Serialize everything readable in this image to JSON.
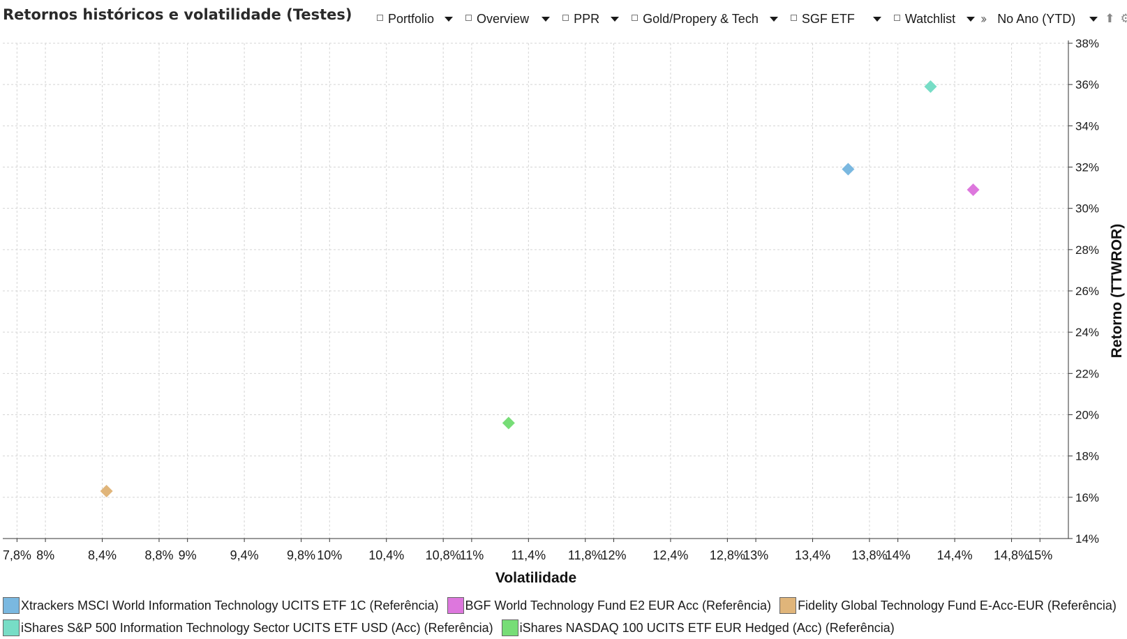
{
  "title": "Retornos históricos e volatilidade (Testes)",
  "toolbar": {
    "items": [
      {
        "label": "Portfolio"
      },
      {
        "label": "Overview"
      },
      {
        "label": "PPR"
      },
      {
        "label": "Gold/Propery & Tech"
      },
      {
        "label": "SGF ETF"
      },
      {
        "label": "Watchlist"
      }
    ],
    "more_icon": "double-chevron-right-icon",
    "period_label": "No Ano (YTD)",
    "export_icon": "upload-icon",
    "settings_icon": "gear-icon"
  },
  "chart_data": {
    "type": "scatter",
    "title": "",
    "xlabel": "Volatilidade",
    "ylabel": "Retorno (TTWROR)",
    "xlim": [
      7.7,
      15.2
    ],
    "ylim": [
      14,
      38
    ],
    "grid": true,
    "y_axis_side": "right",
    "legend_position": "bottom",
    "marker": "diamond",
    "x_ticks": [
      {
        "v": 7.8,
        "label": "7,8%"
      },
      {
        "v": 8.0,
        "label": "8%"
      },
      {
        "v": 8.4,
        "label": "8,4%"
      },
      {
        "v": 8.8,
        "label": "8,8%"
      },
      {
        "v": 9.0,
        "label": "9%"
      },
      {
        "v": 9.4,
        "label": "9,4%"
      },
      {
        "v": 9.8,
        "label": "9,8%"
      },
      {
        "v": 10.0,
        "label": "10%"
      },
      {
        "v": 10.4,
        "label": "10,4%"
      },
      {
        "v": 10.8,
        "label": "10,8%"
      },
      {
        "v": 11.0,
        "label": "11%"
      },
      {
        "v": 11.4,
        "label": "11,4%"
      },
      {
        "v": 11.8,
        "label": "11,8%"
      },
      {
        "v": 12.0,
        "label": "12%"
      },
      {
        "v": 12.4,
        "label": "12,4%"
      },
      {
        "v": 12.8,
        "label": "12,8%"
      },
      {
        "v": 13.0,
        "label": "13%"
      },
      {
        "v": 13.4,
        "label": "13,4%"
      },
      {
        "v": 13.8,
        "label": "13,8%"
      },
      {
        "v": 14.0,
        "label": "14%"
      },
      {
        "v": 14.4,
        "label": "14,4%"
      },
      {
        "v": 14.8,
        "label": "14,8%"
      },
      {
        "v": 15.0,
        "label": "15%"
      }
    ],
    "y_ticks": [
      {
        "v": 14,
        "label": "14%"
      },
      {
        "v": 16,
        "label": "16%"
      },
      {
        "v": 18,
        "label": "18%"
      },
      {
        "v": 20,
        "label": "20%"
      },
      {
        "v": 22,
        "label": "22%"
      },
      {
        "v": 24,
        "label": "24%"
      },
      {
        "v": 26,
        "label": "26%"
      },
      {
        "v": 28,
        "label": "28%"
      },
      {
        "v": 30,
        "label": "30%"
      },
      {
        "v": 32,
        "label": "32%"
      },
      {
        "v": 34,
        "label": "34%"
      },
      {
        "v": 36,
        "label": "36%"
      },
      {
        "v": 38,
        "label": "38%"
      }
    ],
    "series": [
      {
        "name": "Xtrackers MSCI World Information Technology UCITS ETF 1C (Referência)",
        "color": "#7ab8e0",
        "x": 13.65,
        "y": 31.9
      },
      {
        "name": "BGF World Technology Fund E2 EUR Acc (Referência)",
        "color": "#dd77dd",
        "x": 14.53,
        "y": 30.9
      },
      {
        "name": "Fidelity Global Technology Fund E-Acc-EUR (Referência)",
        "color": "#e0b57a",
        "x": 8.43,
        "y": 16.3
      },
      {
        "name": "iShares S&P 500 Information Technology Sector UCITS ETF USD (Acc) (Referência)",
        "color": "#77ddc6",
        "x": 14.23,
        "y": 35.9
      },
      {
        "name": "iShares NASDAQ 100 UCITS ETF EUR Hedged (Acc) (Referência)",
        "color": "#77dd77",
        "x": 11.26,
        "y": 19.6
      }
    ]
  }
}
